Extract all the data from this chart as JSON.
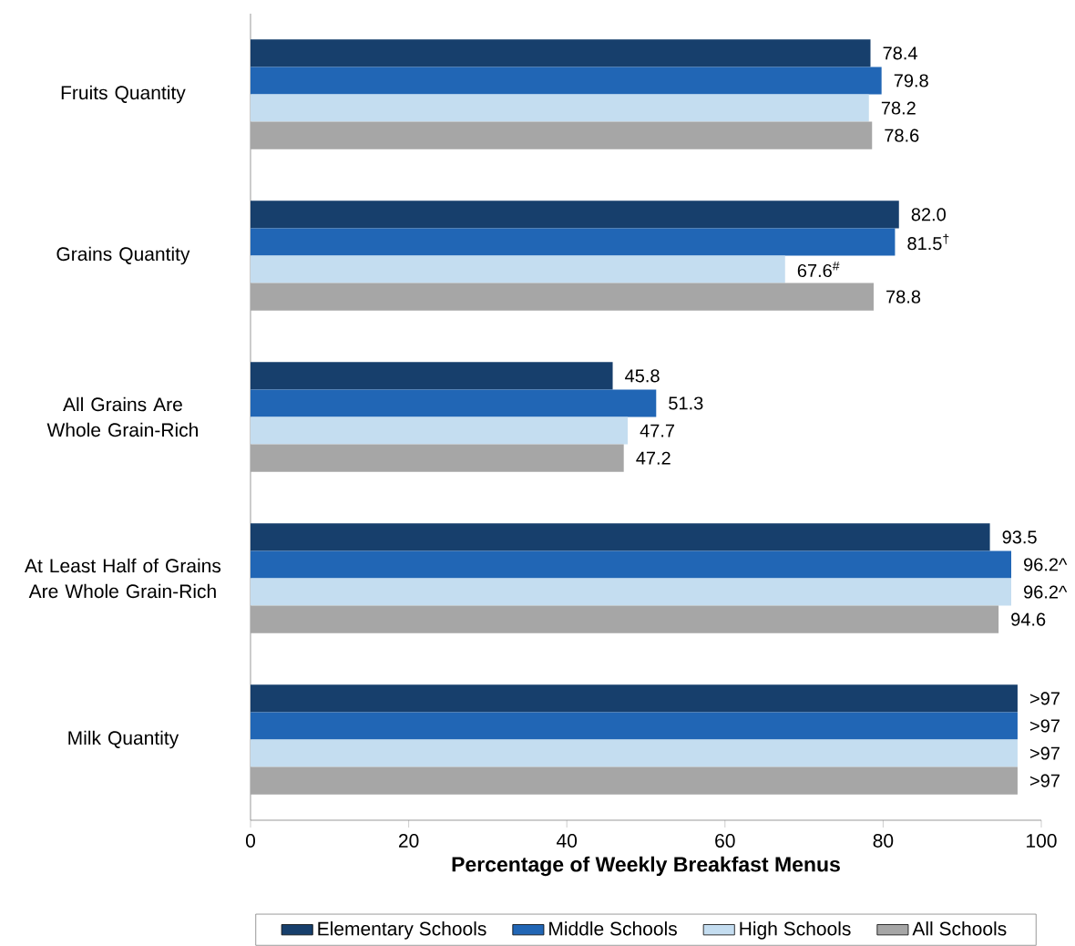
{
  "chart_data": {
    "type": "bar",
    "orientation": "horizontal",
    "xlabel": "Percentage of Weekly Breakfast Menus",
    "categories": [
      "Fruits Quantity",
      "Grains Quantity",
      "All Grains Are Whole Grain-Rich",
      "At Least Half of Grains Are Whole Grain-Rich",
      "Milk Quantity"
    ],
    "series": [
      {
        "name": "Elementary Schools",
        "color": "#173f6c",
        "values": [
          78.4,
          82.0,
          45.8,
          93.5,
          97
        ],
        "value_labels": [
          "78.4",
          "82.0",
          "45.8",
          "93.5",
          ">97"
        ]
      },
      {
        "name": "Middle Schools",
        "color": "#2166b5",
        "values": [
          79.8,
          81.5,
          51.3,
          96.2,
          97
        ],
        "value_labels": [
          "79.8",
          "81.5$^{†}$",
          "51.3",
          "96.2^",
          ">97"
        ]
      },
      {
        "name": "High Schools",
        "color": "#c4ddf0",
        "values": [
          78.2,
          67.6,
          47.7,
          96.2,
          97
        ],
        "value_labels": [
          "78.2",
          "67.6$^{#}$",
          "47.7",
          "96.2^",
          ">97"
        ]
      },
      {
        "name": "All Schools",
        "color": "#a6a6a6",
        "values": [
          78.6,
          78.8,
          47.2,
          94.6,
          97
        ],
        "value_labels": [
          "78.6",
          "78.8",
          "47.2",
          "94.6",
          ">97"
        ]
      }
    ],
    "xlim": [
      0,
      100
    ],
    "xticks": [
      0,
      20,
      40,
      60,
      80,
      100
    ],
    "legend": "bottom"
  }
}
